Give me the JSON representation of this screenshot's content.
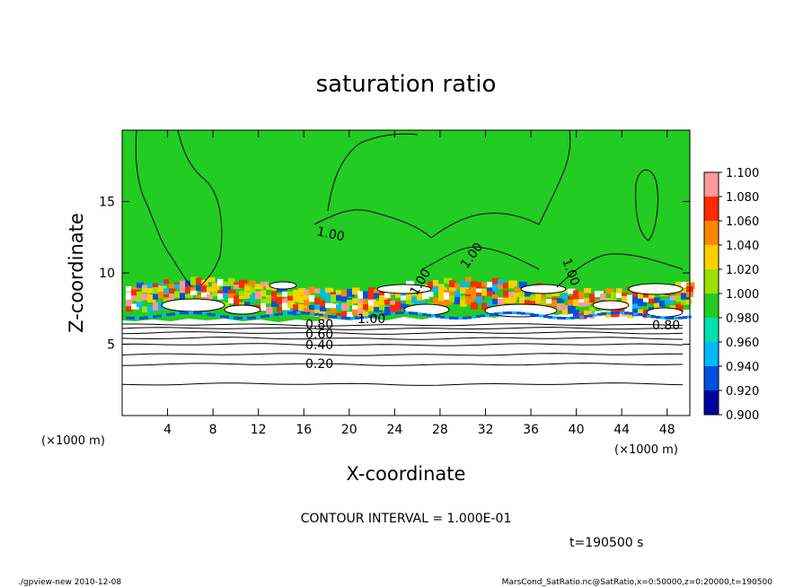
{
  "chart_data": {
    "type": "heatmap",
    "title": "saturation ratio",
    "xlabel": "X-coordinate",
    "ylabel": "Z-coordinate",
    "x_unit": "(×1000 m)",
    "y_unit": "(×1000 m)",
    "xlim": [
      0,
      50
    ],
    "ylim": [
      0,
      20
    ],
    "x_ticks": [
      4,
      8,
      12,
      16,
      20,
      24,
      28,
      32,
      36,
      40,
      44,
      48
    ],
    "y_ticks": [
      5,
      10,
      15
    ],
    "colorbar": {
      "levels": [
        "0.900",
        "0.920",
        "0.940",
        "0.960",
        "0.980",
        "1.000",
        "1.020",
        "1.040",
        "1.060",
        "1.080",
        "1.100"
      ],
      "colors": [
        "#6a0dad",
        "#0000a0",
        "#0050e0",
        "#00b8ff",
        "#00e0b0",
        "#22cc22",
        "#9be000",
        "#ffd000",
        "#ff8800",
        "#ff2a00",
        "#ff9999"
      ]
    },
    "contour_interval": "CONTOUR INTERVAL = 1.000E-01",
    "contour_labels": [
      "0.20",
      "0.40",
      "0.60",
      "0.80",
      "1.00",
      "1.00",
      "1.00",
      "1.00",
      "1.00",
      "0.80"
    ],
    "time_label": "t=190500 s",
    "footer_left": "./gpview-new   2010-12-08",
    "footer_right": "MarsCond_SatRatio.nc@SatRatio,x=0:50000,z=0:20000,t=190500"
  }
}
